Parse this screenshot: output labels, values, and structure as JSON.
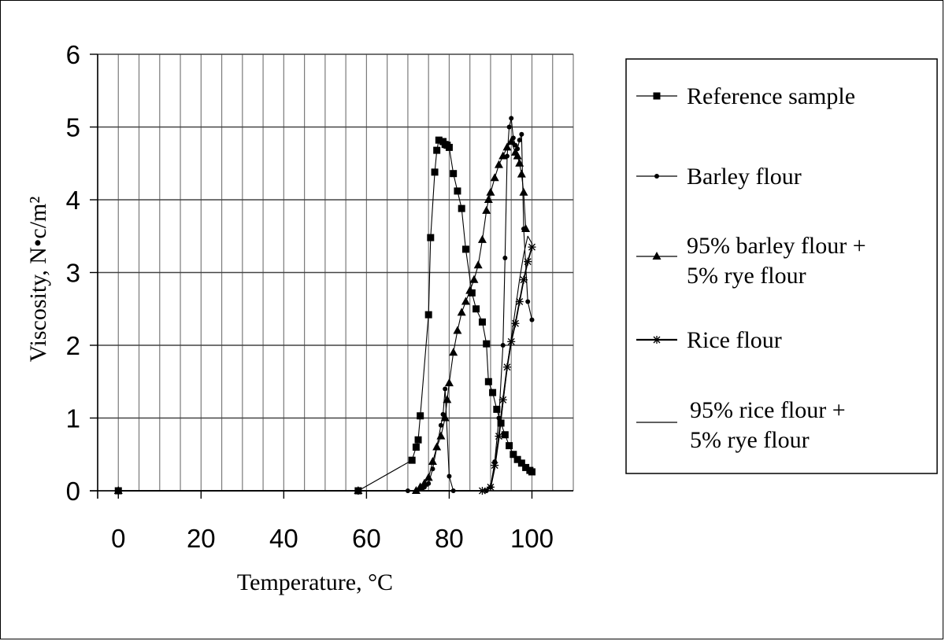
{
  "chart_data": {
    "type": "line",
    "title": "",
    "xlabel": "Temperature, °C",
    "ylabel": "Viscosity, N•c/m²",
    "xlim": [
      -5,
      110
    ],
    "ylim": [
      0,
      6
    ],
    "x_ticks": [
      "0",
      "20",
      "40",
      "60",
      "80",
      "100"
    ],
    "y_ticks": [
      "0",
      "1",
      "2",
      "3",
      "4",
      "5",
      "6"
    ],
    "grid": true,
    "legend_position": "right",
    "series": [
      {
        "name": "Reference sample",
        "marker": "square",
        "points": [
          [
            0,
            0
          ],
          [
            58,
            0
          ],
          [
            71,
            0.42
          ],
          [
            72,
            0.6
          ],
          [
            72.5,
            0.7
          ],
          [
            73,
            1.03
          ],
          [
            75,
            2.42
          ],
          [
            75.5,
            3.48
          ],
          [
            76.5,
            4.38
          ],
          [
            77,
            4.68
          ],
          [
            77.5,
            4.82
          ],
          [
            78.5,
            4.8
          ],
          [
            79,
            4.76
          ],
          [
            79.5,
            4.75
          ],
          [
            80,
            4.72
          ],
          [
            81,
            4.36
          ],
          [
            82,
            4.12
          ],
          [
            83,
            3.88
          ],
          [
            84,
            3.32
          ],
          [
            85.5,
            2.72
          ],
          [
            86.5,
            2.5
          ],
          [
            88,
            2.32
          ],
          [
            89,
            2.02
          ],
          [
            89.5,
            1.5
          ],
          [
            90.5,
            1.35
          ],
          [
            91.5,
            1.12
          ],
          [
            92.5,
            0.93
          ],
          [
            93.5,
            0.77
          ],
          [
            94.5,
            0.62
          ],
          [
            95.5,
            0.5
          ],
          [
            96.5,
            0.43
          ],
          [
            97.5,
            0.38
          ],
          [
            98.5,
            0.32
          ],
          [
            99.5,
            0.28
          ],
          [
            100,
            0.26
          ]
        ]
      },
      {
        "name": "Barley flour",
        "marker": "dot",
        "points": [
          [
            70,
            0
          ],
          [
            72,
            0
          ],
          [
            74,
            0.05
          ],
          [
            75,
            0.1
          ],
          [
            76,
            0.3
          ],
          [
            77,
            0.6
          ],
          [
            78,
            0.9
          ],
          [
            78.5,
            1.05
          ],
          [
            79,
            1.4
          ],
          [
            80,
            0.2
          ],
          [
            81,
            0
          ],
          [
            89,
            0
          ],
          [
            90,
            0.05
          ],
          [
            91,
            0.4
          ],
          [
            92,
            1.0
          ],
          [
            93,
            2.0
          ],
          [
            93.5,
            3.2
          ],
          [
            94,
            4.6
          ],
          [
            94.5,
            5.0
          ],
          [
            95,
            5.12
          ],
          [
            95.5,
            4.85
          ],
          [
            96,
            4.75
          ],
          [
            96.5,
            4.7
          ],
          [
            97,
            4.82
          ],
          [
            97.5,
            4.9
          ],
          [
            98,
            3.6
          ],
          [
            99,
            2.6
          ],
          [
            100,
            2.35
          ]
        ]
      },
      {
        "name": "95% barley flour + 5% rye flour",
        "marker": "triangle",
        "points": [
          [
            0,
            0
          ],
          [
            58,
            0
          ],
          [
            72,
            0
          ],
          [
            73,
            0.05
          ],
          [
            74,
            0.1
          ],
          [
            75,
            0.18
          ],
          [
            76,
            0.4
          ],
          [
            77,
            0.6
          ],
          [
            78,
            0.75
          ],
          [
            79,
            1.0
          ],
          [
            79.5,
            1.25
          ],
          [
            80,
            1.48
          ],
          [
            81,
            1.9
          ],
          [
            82,
            2.2
          ],
          [
            83,
            2.45
          ],
          [
            84,
            2.6
          ],
          [
            85,
            2.75
          ],
          [
            86,
            2.9
          ],
          [
            87,
            3.1
          ],
          [
            88,
            3.45
          ],
          [
            89,
            3.85
          ],
          [
            89.5,
            4.0
          ],
          [
            90,
            4.1
          ],
          [
            91,
            4.3
          ],
          [
            92,
            4.48
          ],
          [
            93,
            4.6
          ],
          [
            94,
            4.72
          ],
          [
            95,
            4.8
          ],
          [
            96,
            4.65
          ],
          [
            96.5,
            4.6
          ],
          [
            97,
            4.5
          ],
          [
            97.5,
            4.35
          ],
          [
            98,
            4.1
          ],
          [
            98.5,
            3.6
          ]
        ]
      },
      {
        "name": "Rice flour",
        "marker": "star",
        "points": [
          [
            0,
            0
          ],
          [
            58,
            0
          ],
          [
            88,
            0
          ],
          [
            90,
            0.05
          ],
          [
            91,
            0.35
          ],
          [
            92,
            0.75
          ],
          [
            93,
            1.25
          ],
          [
            94,
            1.7
          ],
          [
            95,
            2.05
          ],
          [
            96,
            2.3
          ],
          [
            97,
            2.6
          ],
          [
            98,
            2.9
          ],
          [
            99,
            3.15
          ],
          [
            100,
            3.35
          ]
        ]
      },
      {
        "name": "95% rice flour + 5% rye flour",
        "marker": "none",
        "points": [
          [
            0,
            0
          ],
          [
            58,
            0
          ],
          [
            88,
            0
          ],
          [
            90,
            0.03
          ],
          [
            91,
            0.3
          ],
          [
            92,
            0.7
          ],
          [
            93,
            1.2
          ],
          [
            94,
            1.7
          ],
          [
            95,
            2.1
          ],
          [
            96,
            2.5
          ],
          [
            97,
            2.9
          ],
          [
            98,
            3.25
          ],
          [
            99,
            3.5
          ],
          [
            100,
            3.4
          ]
        ]
      }
    ]
  },
  "legend": {
    "items": [
      {
        "lines": [
          "Reference sample"
        ],
        "marker": "square"
      },
      {
        "lines": [
          "Barley flour"
        ],
        "marker": "dot"
      },
      {
        "lines": [
          "95% barley flour +",
          "5% rye flour"
        ],
        "marker": "triangle"
      },
      {
        "lines": [
          "Rice flour"
        ],
        "marker": "star"
      },
      {
        "lines": [
          "95% rice flour +",
          "5% rye flour"
        ],
        "marker": "none"
      }
    ]
  }
}
